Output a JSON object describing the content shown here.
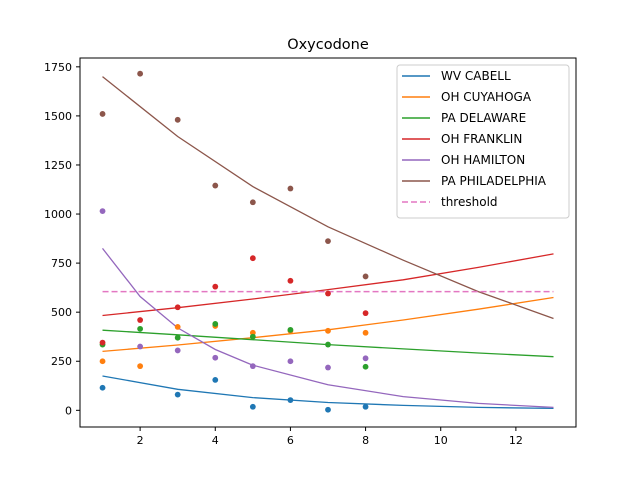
{
  "chart_data": {
    "type": "scatter",
    "title": "Oxycodone",
    "xlabel": "",
    "ylabel": "",
    "xlim": [
      0.4,
      13.6
    ],
    "ylim": [
      -85,
      1795
    ],
    "x_ticks": [
      2,
      4,
      6,
      8,
      10,
      12
    ],
    "y_ticks": [
      0,
      250,
      500,
      750,
      1000,
      1250,
      1500,
      1750
    ],
    "grid": false,
    "legend_position": "top-right",
    "series": [
      {
        "name": "WV CABELL",
        "color": "#1f77b4",
        "points": [
          [
            1,
            115
          ],
          [
            3,
            80
          ],
          [
            4,
            155
          ],
          [
            5,
            18
          ],
          [
            6,
            52
          ],
          [
            7,
            3
          ],
          [
            8,
            18
          ]
        ],
        "fit": [
          [
            1,
            175
          ],
          [
            3,
            107
          ],
          [
            5,
            65
          ],
          [
            7,
            40
          ],
          [
            9,
            25
          ],
          [
            11,
            15
          ],
          [
            13,
            10
          ]
        ]
      },
      {
        "name": "OH CUYAHOGA",
        "color": "#ff7f0e",
        "points": [
          [
            1,
            250
          ],
          [
            2,
            225
          ],
          [
            3,
            425
          ],
          [
            4,
            430
          ],
          [
            5,
            395
          ],
          [
            6,
            405
          ],
          [
            7,
            405
          ],
          [
            8,
            395
          ]
        ],
        "fit": [
          [
            1,
            300
          ],
          [
            3,
            333
          ],
          [
            5,
            370
          ],
          [
            7,
            410
          ],
          [
            9,
            460
          ],
          [
            11,
            515
          ],
          [
            13,
            575
          ]
        ]
      },
      {
        "name": "PA DELAWARE",
        "color": "#2ca02c",
        "points": [
          [
            1,
            335
          ],
          [
            2,
            415
          ],
          [
            3,
            370
          ],
          [
            4,
            440
          ],
          [
            5,
            375
          ],
          [
            6,
            410
          ],
          [
            7,
            335
          ],
          [
            8,
            222
          ]
        ],
        "fit": [
          [
            1,
            408
          ],
          [
            3,
            385
          ],
          [
            5,
            360
          ],
          [
            7,
            335
          ],
          [
            9,
            313
          ],
          [
            11,
            292
          ],
          [
            13,
            273
          ]
        ]
      },
      {
        "name": "OH FRANKLIN",
        "color": "#d62728",
        "points": [
          [
            1,
            345
          ],
          [
            2,
            460
          ],
          [
            3,
            525
          ],
          [
            4,
            630
          ],
          [
            5,
            775
          ],
          [
            6,
            660
          ],
          [
            7,
            595
          ],
          [
            8,
            495
          ]
        ],
        "fit": [
          [
            1,
            483
          ],
          [
            3,
            523
          ],
          [
            5,
            567
          ],
          [
            7,
            615
          ],
          [
            9,
            665
          ],
          [
            11,
            728
          ],
          [
            13,
            797
          ]
        ]
      },
      {
        "name": "OH HAMILTON",
        "color": "#9467bd",
        "points": [
          [
            1,
            1015
          ],
          [
            2,
            325
          ],
          [
            3,
            305
          ],
          [
            4,
            268
          ],
          [
            5,
            225
          ],
          [
            6,
            250
          ],
          [
            7,
            218
          ],
          [
            8,
            265
          ]
        ],
        "fit": [
          [
            1,
            825
          ],
          [
            2,
            580
          ],
          [
            3,
            420
          ],
          [
            4,
            310
          ],
          [
            5,
            230
          ],
          [
            7,
            130
          ],
          [
            9,
            70
          ],
          [
            11,
            35
          ],
          [
            13,
            15
          ]
        ]
      },
      {
        "name": "PA PHILADELPHIA",
        "color": "#8c564b",
        "points": [
          [
            1,
            1510
          ],
          [
            2,
            1715
          ],
          [
            3,
            1480
          ],
          [
            4,
            1145
          ],
          [
            5,
            1060
          ],
          [
            6,
            1130
          ],
          [
            7,
            862
          ],
          [
            8,
            682
          ]
        ],
        "fit": [
          [
            1,
            1700
          ],
          [
            3,
            1395
          ],
          [
            5,
            1140
          ],
          [
            7,
            935
          ],
          [
            9,
            765
          ],
          [
            11,
            605
          ],
          [
            13,
            468
          ]
        ]
      }
    ],
    "threshold": {
      "name": "threshold",
      "value": 605,
      "color": "#e377c2",
      "style": "dashed"
    }
  }
}
